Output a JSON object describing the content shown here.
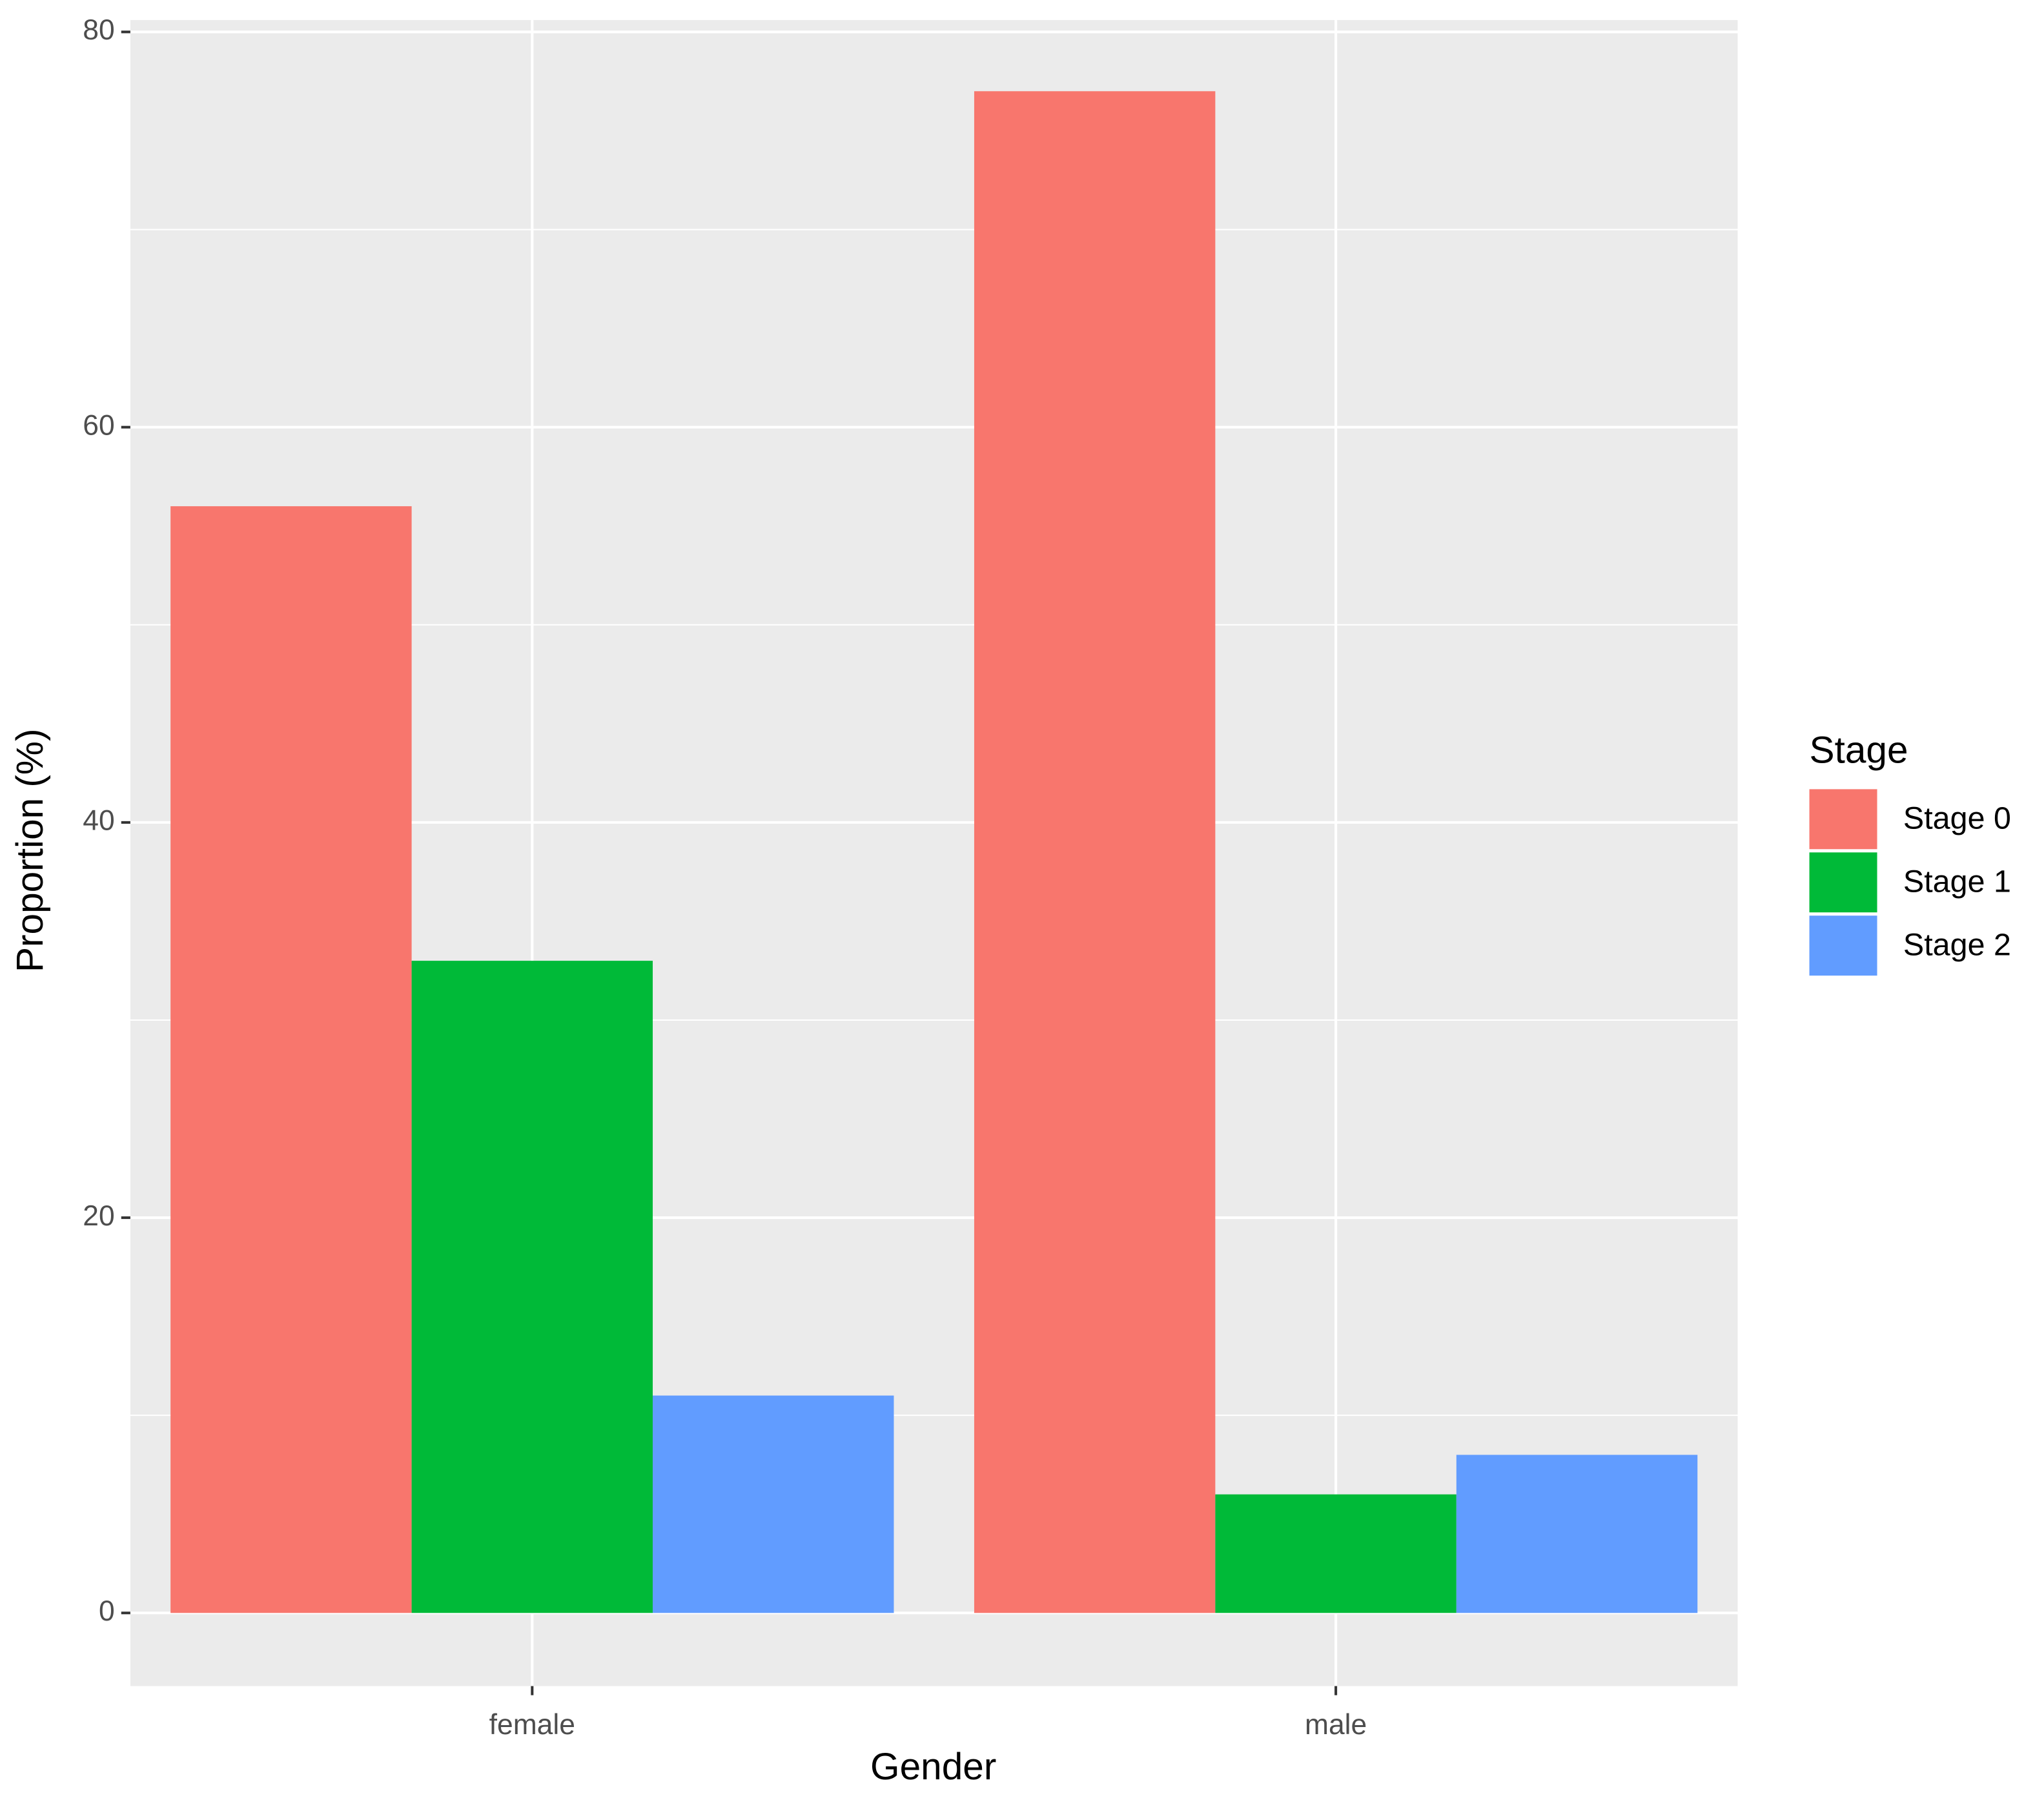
{
  "chart_data": {
    "type": "bar",
    "x_label": "Gender",
    "y_label": "Proportion (%)",
    "categories": [
      "female",
      "male"
    ],
    "series": [
      {
        "name": "Stage 0",
        "color": "#f8766d",
        "values": [
          56,
          77
        ]
      },
      {
        "name": "Stage 1",
        "color": "#00ba38",
        "values": [
          33,
          6
        ]
      },
      {
        "name": "Stage 2",
        "color": "#619cff",
        "values": [
          11,
          8
        ]
      }
    ],
    "legend_title": "Stage",
    "legend": "right",
    "ylim": [
      -3.7,
      80.6
    ],
    "yticks": [
      0,
      20,
      40,
      60,
      80
    ],
    "grid": true,
    "minor_grid": true
  }
}
